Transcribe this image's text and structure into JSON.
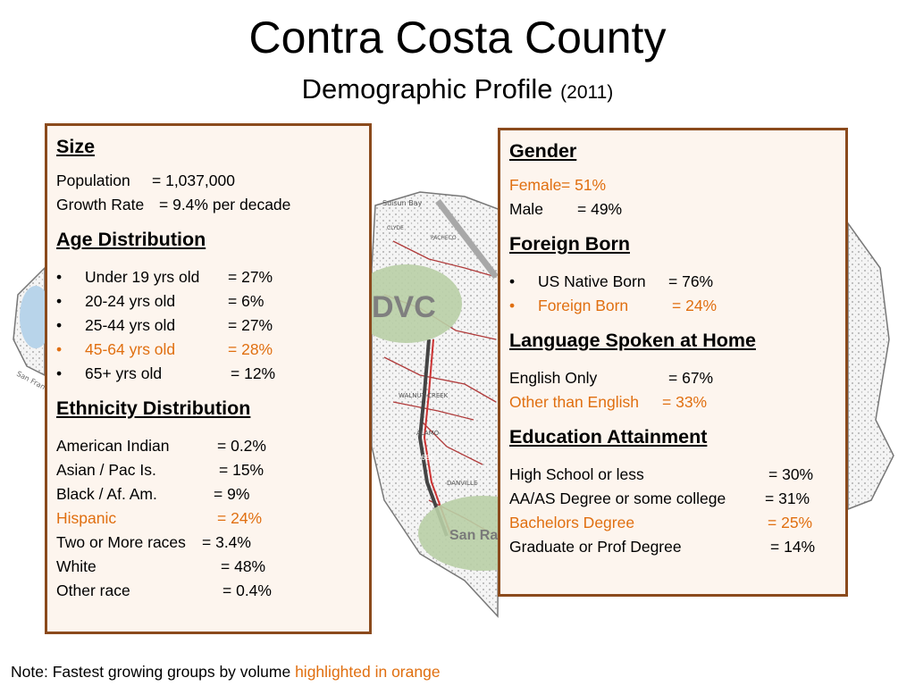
{
  "title": "Contra Costa County",
  "subtitle": {
    "text": "Demographic Profile",
    "year": "(2011)"
  },
  "map": {
    "labels": [
      "Suisun Bay",
      "DVC",
      "San Ra",
      "San Fran",
      "WALNUT CREEK",
      "DANVILLE",
      "ALAMO",
      "680",
      "CLYDE",
      "PACHECO"
    ]
  },
  "colors": {
    "panel_border": "#8b4a1c",
    "panel_bg": "#fdf5ee",
    "highlight": "#e06f10"
  },
  "size": {
    "heading": "Size",
    "population_label": "Population",
    "population_value": "=  1,037,000",
    "growth_label": "Growth Rate",
    "growth_value": "=  9.4% per decade"
  },
  "age": {
    "heading": "Age Distribution",
    "items": [
      {
        "bullet": "•",
        "label": "Under 19 yrs old",
        "value": "=  27%"
      },
      {
        "bullet": "•",
        "label": "20-24 yrs old",
        "value": "=  6%"
      },
      {
        "bullet": "•",
        "label": "25-44 yrs old",
        "value": "=  27%"
      },
      {
        "bullet": "•",
        "label": "45-64 yrs old",
        "value": "=  28%"
      },
      {
        "bullet": "•",
        "label": "65+ yrs old",
        "value": "=  12%"
      }
    ]
  },
  "ethnicity": {
    "heading": "Ethnicity Distribution",
    "items": [
      {
        "label": "American Indian",
        "value": "=  0.2%"
      },
      {
        "label": "Asian / Pac Is.",
        "value": "=  15%"
      },
      {
        "label": "Black / Af. Am.",
        "value": "=  9%"
      },
      {
        "label": "Hispanic",
        "value": "=  24%"
      },
      {
        "label": "Two or More races",
        "value": "=  3.4%"
      },
      {
        "label": "White",
        "value": "=  48%"
      },
      {
        "label": "Other race",
        "value": "=  0.4%"
      }
    ]
  },
  "gender": {
    "heading": "Gender",
    "items": [
      {
        "label": "Female",
        "value": "=  51%"
      },
      {
        "label": "Male",
        "value": "=  49%"
      }
    ]
  },
  "foreign": {
    "heading": "Foreign Born",
    "items": [
      {
        "bullet": "•",
        "label": "US Native Born",
        "value": "=  76%"
      },
      {
        "bullet": "•",
        "label": "Foreign Born",
        "value": "=  24%"
      }
    ]
  },
  "language": {
    "heading": "Language Spoken at Home",
    "items": [
      {
        "label": "English Only",
        "value": "=  67%"
      },
      {
        "label": "Other than English",
        "value": "=  33%"
      }
    ]
  },
  "education": {
    "heading": "Education Attainment",
    "items": [
      {
        "label": "High School or less",
        "value": "=  30%"
      },
      {
        "label": "AA/AS Degree or some college",
        "value": "=  31%"
      },
      {
        "label": "Bachelors Degree",
        "value": "=  25%"
      },
      {
        "label": "Graduate or Prof Degree",
        "value": "=  14%"
      }
    ]
  },
  "note": {
    "prefix": "Note:  Fastest growing groups by volume ",
    "highlight": "highlighted in orange"
  }
}
